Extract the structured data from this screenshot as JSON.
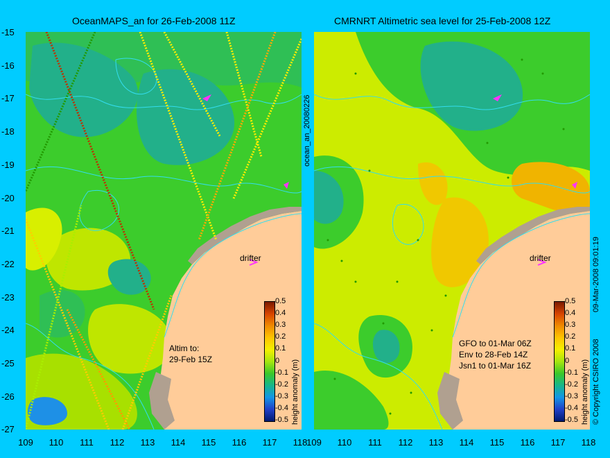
{
  "panels": [
    {
      "title": "OceanMAPS_an for 26-Feb-2008 11Z",
      "side_label": "ocean_an_20080226",
      "drifter_label": "drifter",
      "annotation": [
        "Altim to:",
        "29-Feb 15Z"
      ]
    },
    {
      "title": "CMRNRT Altimetric sea level  for 25-Feb-2008 12Z",
      "side_label": "09-Mar-2008 09:01:19",
      "drifter_label": "drifter",
      "annotation": [
        "GFO to 01-Mar 06Z",
        "Env to 28-Feb 14Z",
        "Jsn1 to 01-Mar 16Z"
      ]
    }
  ],
  "axes": {
    "lat_ticks": [
      "-15",
      "-16",
      "-17",
      "-18",
      "-19",
      "-20",
      "-21",
      "-22",
      "-23",
      "-24",
      "-25",
      "-26",
      "-27"
    ],
    "lon_ticks": [
      "109",
      "110",
      "111",
      "112",
      "113",
      "114",
      "115",
      "116",
      "117",
      "118"
    ]
  },
  "colorbar": {
    "label": "height anomaly (m)",
    "ticks": [
      "0.5",
      "0.4",
      "0.3",
      "0.2",
      "0.1",
      "0",
      "-0.1",
      "-0.2",
      "-0.3",
      "-0.4",
      "-0.5"
    ]
  },
  "copyright": "© Copyright CSIRO 2008",
  "colors": {
    "background": "#00ccff",
    "land": "#ffcc99",
    "shelf": "#b0a090",
    "green": "#33cc33",
    "yellow": "#ccee00"
  }
}
